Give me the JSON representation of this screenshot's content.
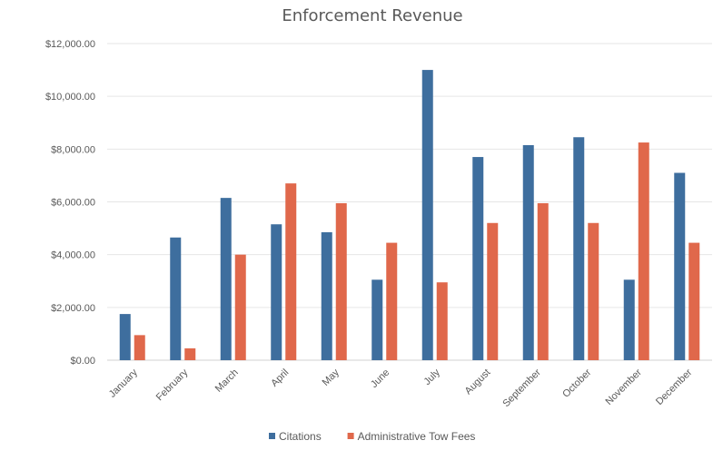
{
  "chart_data": {
    "type": "bar",
    "title": "Enforcement Revenue",
    "xlabel": "",
    "ylabel": "",
    "ylim": [
      0,
      12000
    ],
    "y_ticks": [
      "$0.00",
      "$2,000.00",
      "$4,000.00",
      "$6,000.00",
      "$8,000.00",
      "$10,000.00",
      "$12,000.00"
    ],
    "categories": [
      "January",
      "February",
      "March",
      "April",
      "May",
      "June",
      "July",
      "August",
      "September",
      "October",
      "November",
      "December"
    ],
    "series": [
      {
        "name": "Citations",
        "color": "#3e6e9e",
        "values": [
          1750,
          4650,
          6150,
          5150,
          4850,
          3050,
          11000,
          7700,
          8150,
          8450,
          3050,
          7100
        ]
      },
      {
        "name": "Administrative Tow Fees",
        "color": "#e0684b",
        "values": [
          950,
          450,
          4000,
          6700,
          5950,
          4450,
          2950,
          5200,
          5950,
          5200,
          8250,
          4450
        ]
      }
    ],
    "grid": true,
    "legend_position": "bottom"
  }
}
